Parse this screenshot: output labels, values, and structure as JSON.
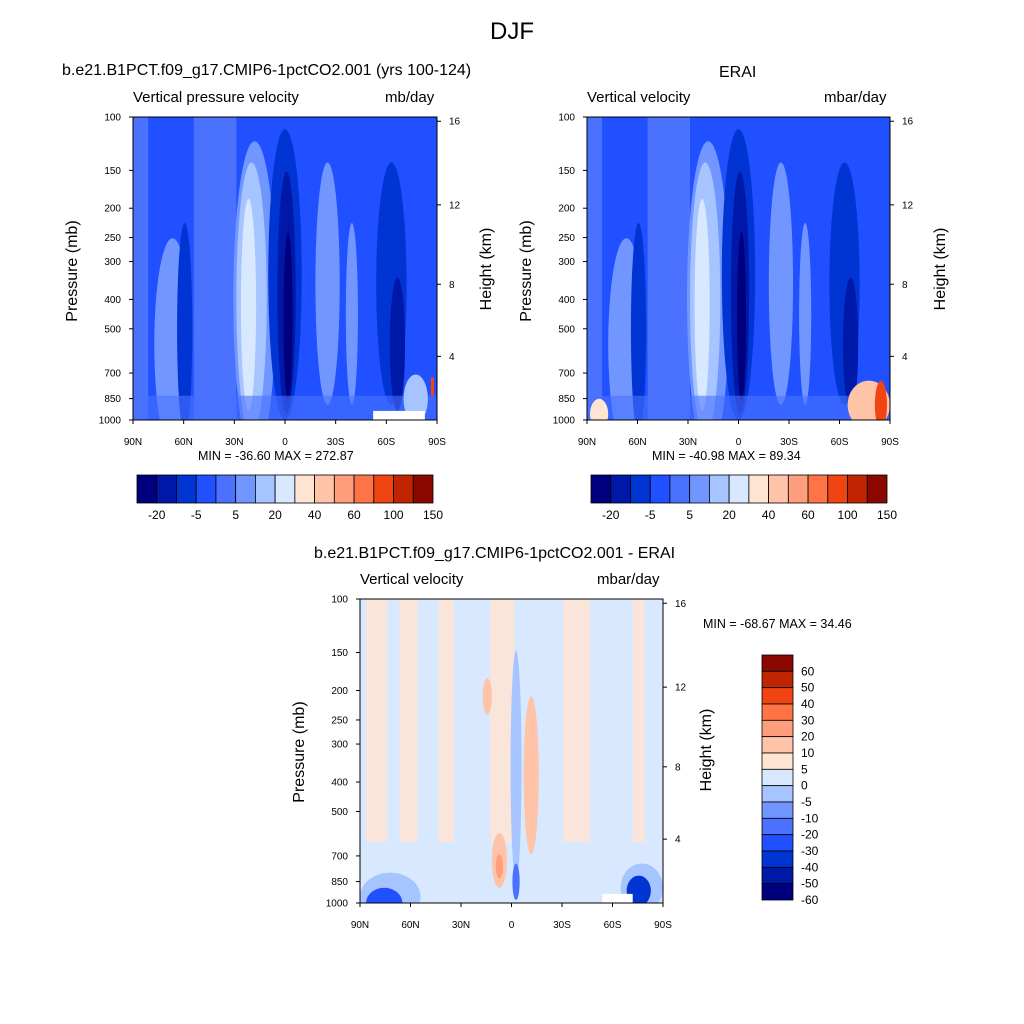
{
  "figure": {
    "title": "DJF"
  },
  "colors": {
    "cb_main": [
      "#00007f",
      "#0018a8",
      "#0035d4",
      "#2050ff",
      "#4a72ff",
      "#7296ff",
      "#a6c4ff",
      "#d8e8ff",
      "#ffe4d2",
      "#ffc4a8",
      "#ff9e7c",
      "#ff7446",
      "#f04412",
      "#c02400",
      "#8a0800"
    ],
    "cb_diff": [
      "#00007f",
      "#0018a8",
      "#0035d4",
      "#2050ff",
      "#4a72ff",
      "#7296ff",
      "#a6c4ff",
      "#d8e8ff",
      "#ffe4d2",
      "#ffc4a8",
      "#ff9e7c",
      "#ff7446",
      "#f04412",
      "#c02400",
      "#8a0800"
    ]
  },
  "panels": [
    {
      "id": "model",
      "title": "b.e21.B1PCT.f09_g17.CMIP6-1pctCO2.001 (yrs 100-124)",
      "left_label": "Vertical pressure velocity",
      "right_label": "mb/day",
      "ylabel": "Pressure (mb)",
      "ylabel2": "Height (km)",
      "minmax": "MIN = -36.60  MAX = 272.87"
    },
    {
      "id": "erai",
      "title": "ERAI",
      "left_label": "Vertical velocity",
      "right_label": "mbar/day",
      "ylabel": "Pressure (mb)",
      "ylabel2": "Height (km)",
      "minmax": "MIN = -40.98  MAX =  89.34"
    },
    {
      "id": "diff",
      "title": "b.e21.B1PCT.f09_g17.CMIP6-1pctCO2.001 - ERAI",
      "left_label": "Vertical velocity",
      "right_label": "mbar/day",
      "ylabel": "Pressure (mb)",
      "ylabel2": "Height (km)",
      "minmax": "MIN = -68.67  MAX =  34.46"
    }
  ],
  "axes": {
    "pressure_ticks": [
      "100",
      "150",
      "200",
      "250",
      "300",
      "400",
      "500",
      "700",
      "850",
      "1000"
    ],
    "height_ticks": [
      "16",
      "12",
      "8",
      "4"
    ],
    "lat_ticks": [
      "90N",
      "60N",
      "30N",
      "0",
      "30S",
      "60S",
      "90S"
    ]
  },
  "colorbars": {
    "main_labels": [
      "-20",
      "-5",
      "5",
      "20",
      "40",
      "60",
      "100",
      "150"
    ],
    "diff_labels": [
      "60",
      "50",
      "40",
      "30",
      "20",
      "10",
      "5",
      "0",
      "-5",
      "-10",
      "-20",
      "-30",
      "-40",
      "-50",
      "-60"
    ]
  },
  "chart_data": [
    {
      "type": "heatmap",
      "title": "b.e21.B1PCT.f09_g17.CMIP6-1pctCO2.001 (yrs 100-124)",
      "subtitle": "Vertical pressure velocity",
      "units": "mb/day",
      "xlabel": "",
      "ylabel": "Pressure (mb)",
      "ylabel_right": "Height (km)",
      "x": [
        "90N",
        "60N",
        "30N",
        "0",
        "30S",
        "60S",
        "90S"
      ],
      "y_pressure_mb": [
        100,
        150,
        200,
        250,
        300,
        400,
        500,
        700,
        850,
        1000
      ],
      "yscale": "log",
      "ylim": [
        1000,
        100
      ],
      "min": -36.6,
      "max": 272.87,
      "levels": [
        -20,
        -5,
        5,
        20,
        40,
        60,
        100,
        150
      ]
    },
    {
      "type": "heatmap",
      "title": "ERAI",
      "subtitle": "Vertical velocity",
      "units": "mbar/day",
      "xlabel": "",
      "ylabel": "Pressure (mb)",
      "ylabel_right": "Height (km)",
      "x": [
        "90N",
        "60N",
        "30N",
        "0",
        "30S",
        "60S",
        "90S"
      ],
      "y_pressure_mb": [
        100,
        150,
        200,
        250,
        300,
        400,
        500,
        700,
        850,
        1000
      ],
      "yscale": "log",
      "ylim": [
        1000,
        100
      ],
      "min": -40.98,
      "max": 89.34,
      "levels": [
        -20,
        -5,
        5,
        20,
        40,
        60,
        100,
        150
      ]
    },
    {
      "type": "heatmap",
      "title": "b.e21.B1PCT.f09_g17.CMIP6-1pctCO2.001 - ERAI",
      "subtitle": "Vertical velocity",
      "units": "mbar/day",
      "xlabel": "",
      "ylabel": "Pressure (mb)",
      "ylabel_right": "Height (km)",
      "x": [
        "90N",
        "60N",
        "30N",
        "0",
        "30S",
        "60S",
        "90S"
      ],
      "y_pressure_mb": [
        100,
        150,
        200,
        250,
        300,
        400,
        500,
        700,
        850,
        1000
      ],
      "yscale": "log",
      "ylim": [
        1000,
        100
      ],
      "min": -68.67,
      "max": 34.46,
      "levels": [
        -60,
        -50,
        -40,
        -30,
        -20,
        -10,
        -5,
        0,
        5,
        10,
        20,
        30,
        40,
        50,
        60
      ]
    }
  ]
}
